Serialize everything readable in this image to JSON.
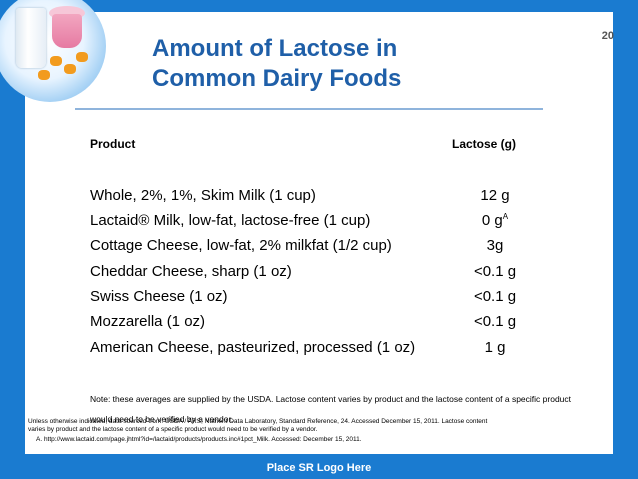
{
  "slide": {
    "number": "20",
    "title_line1": "Amount of Lactose in",
    "title_line2": "Common Dairy Foods"
  },
  "table": {
    "headers": {
      "product": "Product",
      "lactose": "Lactose (g)"
    },
    "rows": [
      {
        "product": "Whole, 2%, 1%, Skim Milk (1 cup)",
        "lactose": "12 g",
        "sup": ""
      },
      {
        "product": "Lactaid® Milk, low-fat, lactose-free (1 cup)",
        "lactose": "0 g",
        "sup": "A"
      },
      {
        "product": "Cottage Cheese, low-fat, 2% milkfat (1/2 cup)",
        "lactose": "3g",
        "sup": ""
      },
      {
        "product": "Cheddar Cheese, sharp (1 oz)",
        "lactose": "<0.1 g",
        "sup": ""
      },
      {
        "product": "Swiss Cheese (1 oz)",
        "lactose": "<0.1 g",
        "sup": ""
      },
      {
        "product": "Mozzarella (1 oz)",
        "lactose": "<0.1 g",
        "sup": ""
      },
      {
        "product": "American Cheese, pasteurized, processed (1 oz)",
        "lactose": "1 g",
        "sup": ""
      }
    ]
  },
  "note": "Note: these averages are supplied by the USDA. Lactose content varies by product and the lactose content of a specific product would need to be verified by a vendor.",
  "source": "Unless otherwise indicated, data sourced from: USDA / ARS, Nutrient Data Laboratory, Standard Reference, 24. Accessed December 15, 2011. Lactose content varies by product and the lactose content of a specific product would need to be verified by a vendor.",
  "source_ref": "A. http://www.lactaid.com/page.jhtml?id=/lactaid/products/products.inc#1pct_Milk. Accessed: December 15, 2011.",
  "footer": {
    "logo_placeholder": "Place SR Logo Here"
  },
  "colors": {
    "frame": "#1a7bd0",
    "title": "#1f5fa8",
    "rule": "#8fb4dc"
  }
}
